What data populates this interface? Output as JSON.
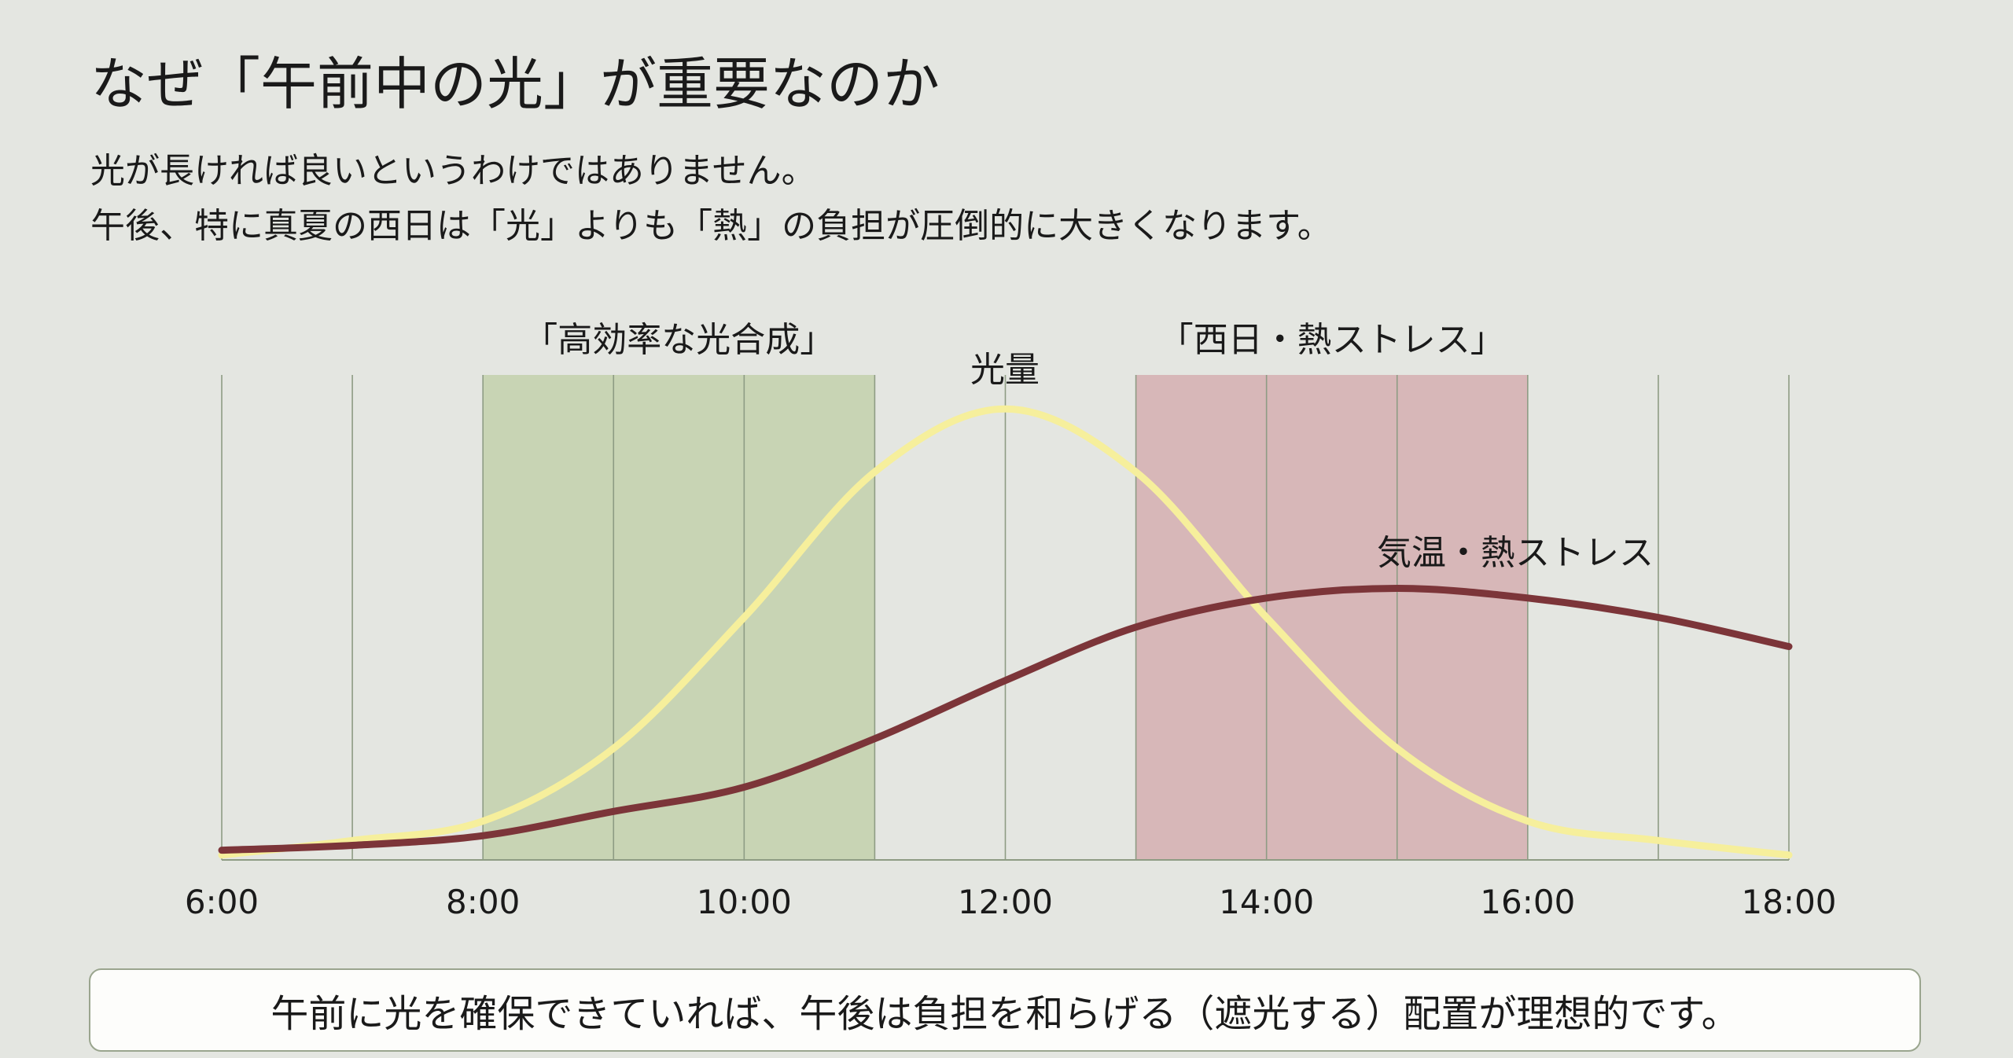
{
  "header": {
    "title": "なぜ「午前中の光」が重要なのか",
    "subtitle_lines": [
      "光が長ければ良いというわけではありません。",
      "午後、特に真夏の西日は「光」よりも「熱」の負担が圧倒的に大きくなります。"
    ]
  },
  "chart_data": {
    "type": "line",
    "title": "",
    "xlabel": "",
    "ylabel": "",
    "x_ticks": [
      "6:00",
      "8:00",
      "10:00",
      "12:00",
      "14:00",
      "16:00",
      "18:00"
    ],
    "xlim": [
      6,
      18
    ],
    "ylim": [
      0,
      1
    ],
    "grid": "vertical lines every hour",
    "x": [
      6,
      7,
      8,
      9,
      10,
      11,
      12,
      13,
      14,
      15,
      16,
      17,
      18
    ],
    "series": [
      {
        "name": "光量",
        "color": "#f6ef9c",
        "values": [
          0.01,
          0.04,
          0.08,
          0.23,
          0.5,
          0.8,
          0.93,
          0.8,
          0.5,
          0.23,
          0.08,
          0.04,
          0.01
        ]
      },
      {
        "name": "気温・熱ストレス",
        "color": "#7c3539",
        "values": [
          0.02,
          0.03,
          0.05,
          0.1,
          0.15,
          0.25,
          0.37,
          0.48,
          0.54,
          0.56,
          0.54,
          0.5,
          0.44
        ]
      }
    ],
    "bands": [
      {
        "label": "「高効率な光合成」",
        "from": 8,
        "to": 11,
        "color": "#c8d4b4"
      },
      {
        "label": "「西日・熱ストレス」",
        "from": 13,
        "to": 16,
        "color": "#d7b7b8"
      }
    ]
  },
  "footer": {
    "note": "午前に光を確保できていれば、午後は負担を和らげる（遮光する）配置が理想的です。"
  }
}
